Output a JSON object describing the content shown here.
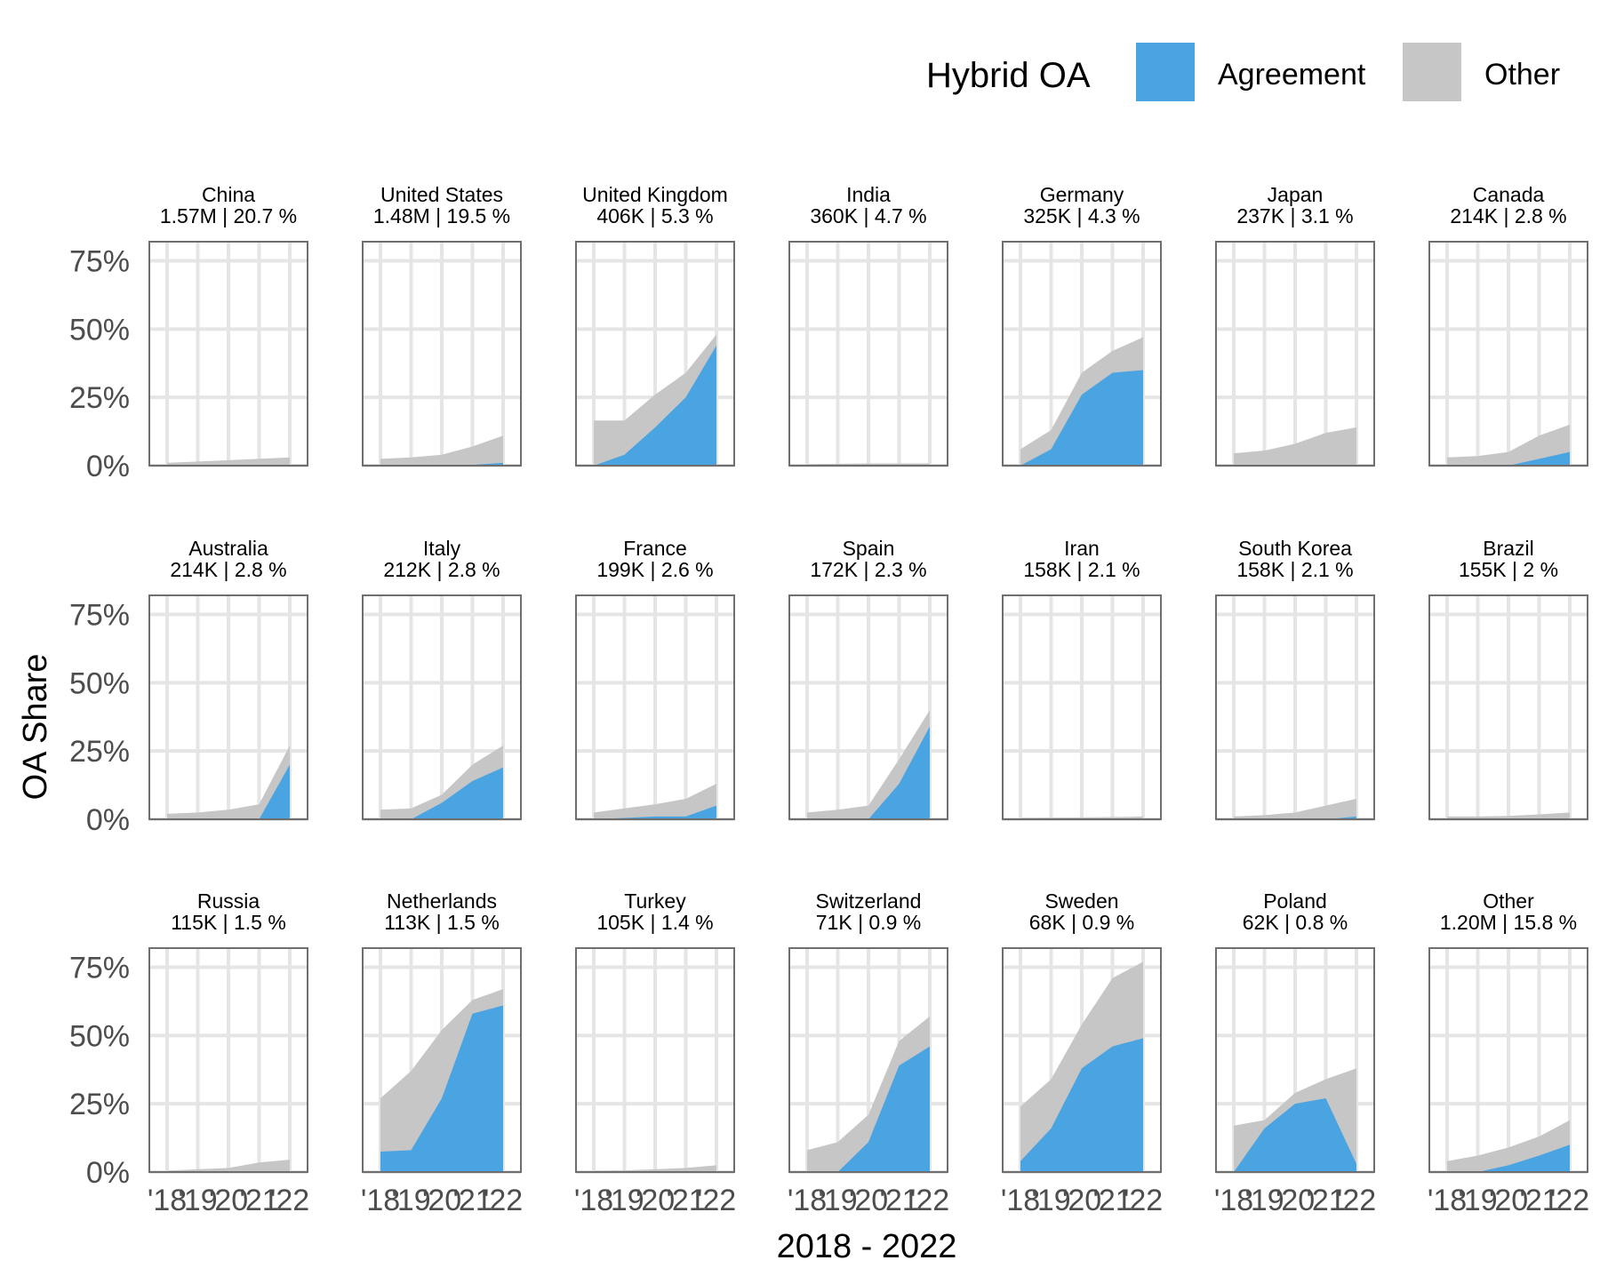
{
  "legend": {
    "title": "Hybrid OA",
    "items": [
      {
        "label": "Agreement",
        "color": "#4BA4E2"
      },
      {
        "label": "Other",
        "color": "#C6C6C6"
      }
    ]
  },
  "chart_data": {
    "type": "area",
    "xlabel": "2018 - 2022",
    "ylabel": "OA Share",
    "x": [
      2018,
      2019,
      2020,
      2021,
      2022
    ],
    "x_tick_labels": [
      "'18",
      "'19",
      "'20",
      "'21",
      "'22"
    ],
    "ylim": [
      0,
      0.82
    ],
    "y_ticks": [
      0,
      0.25,
      0.5,
      0.75
    ],
    "y_tick_labels": [
      "0%",
      "25%",
      "50%",
      "75%"
    ],
    "grid": true,
    "legend_position": "top-right",
    "series_names": [
      "Agreement",
      "Other"
    ],
    "panels": [
      {
        "name": "China",
        "subtitle": "1.57M | 20.7 %",
        "agreement": [
          0,
          0,
          0,
          0,
          0
        ],
        "total": [
          0.01,
          0.015,
          0.02,
          0.025,
          0.03
        ]
      },
      {
        "name": "United States",
        "subtitle": "1.48M | 19.5 %",
        "agreement": [
          0,
          0,
          0,
          0.003,
          0.01
        ],
        "total": [
          0.025,
          0.03,
          0.04,
          0.07,
          0.11
        ]
      },
      {
        "name": "United Kingdom",
        "subtitle": "406K | 5.3 %",
        "agreement": [
          0,
          0.04,
          0.14,
          0.25,
          0.44
        ],
        "total": [
          0.165,
          0.165,
          0.26,
          0.34,
          0.48
        ]
      },
      {
        "name": "India",
        "subtitle": "360K | 4.7 %",
        "agreement": [
          0,
          0,
          0,
          0,
          0
        ],
        "total": [
          0.005,
          0.007,
          0.008,
          0.008,
          0.008
        ]
      },
      {
        "name": "Germany",
        "subtitle": "325K | 4.3 %",
        "agreement": [
          0,
          0.06,
          0.26,
          0.34,
          0.35
        ],
        "total": [
          0.06,
          0.13,
          0.34,
          0.42,
          0.47
        ]
      },
      {
        "name": "Japan",
        "subtitle": "237K | 3.1 %",
        "agreement": [
          0,
          0,
          0,
          0,
          0
        ],
        "total": [
          0.045,
          0.055,
          0.08,
          0.12,
          0.14
        ]
      },
      {
        "name": "Canada",
        "subtitle": "214K | 2.8 %",
        "agreement": [
          0,
          0,
          0,
          0.025,
          0.05
        ],
        "total": [
          0.03,
          0.035,
          0.05,
          0.11,
          0.15
        ]
      },
      {
        "name": "Australia",
        "subtitle": "214K | 2.8 %",
        "agreement": [
          0,
          0,
          0,
          0,
          0.2
        ],
        "total": [
          0.02,
          0.025,
          0.035,
          0.055,
          0.27
        ]
      },
      {
        "name": "Italy",
        "subtitle": "212K | 2.8 %",
        "agreement": [
          0,
          0,
          0.06,
          0.14,
          0.19
        ],
        "total": [
          0.035,
          0.04,
          0.09,
          0.2,
          0.27
        ]
      },
      {
        "name": "France",
        "subtitle": "199K | 2.6 %",
        "agreement": [
          0,
          0.005,
          0.01,
          0.01,
          0.05
        ],
        "total": [
          0.025,
          0.04,
          0.055,
          0.075,
          0.13
        ]
      },
      {
        "name": "Spain",
        "subtitle": "172K | 2.3 %",
        "agreement": [
          0,
          0,
          0,
          0.13,
          0.34
        ],
        "total": [
          0.025,
          0.035,
          0.05,
          0.22,
          0.4
        ]
      },
      {
        "name": "Iran",
        "subtitle": "158K | 2.1 %",
        "agreement": [
          0,
          0,
          0,
          0,
          0
        ],
        "total": [
          0.005,
          0.006,
          0.007,
          0.008,
          0.01
        ]
      },
      {
        "name": "South Korea",
        "subtitle": "158K | 2.1 %",
        "agreement": [
          0,
          0,
          0,
          0,
          0.01
        ],
        "total": [
          0.01,
          0.015,
          0.025,
          0.05,
          0.075
        ]
      },
      {
        "name": "Brazil",
        "subtitle": "155K | 2 %",
        "agreement": [
          0,
          0,
          0,
          0,
          0
        ],
        "total": [
          0.01,
          0.01,
          0.012,
          0.018,
          0.025
        ]
      },
      {
        "name": "Russia",
        "subtitle": "115K | 1.5 %",
        "agreement": [
          0,
          0,
          0,
          0,
          0
        ],
        "total": [
          0.005,
          0.01,
          0.015,
          0.035,
          0.045
        ]
      },
      {
        "name": "Netherlands",
        "subtitle": "113K | 1.5 %",
        "agreement": [
          0.075,
          0.08,
          0.27,
          0.58,
          0.61
        ],
        "total": [
          0.27,
          0.37,
          0.52,
          0.63,
          0.67
        ]
      },
      {
        "name": "Turkey",
        "subtitle": "105K | 1.4 %",
        "agreement": [
          0,
          0,
          0,
          0,
          0
        ],
        "total": [
          0.004,
          0.006,
          0.01,
          0.015,
          0.025
        ]
      },
      {
        "name": "Switzerland",
        "subtitle": "71K | 0.9 %",
        "agreement": [
          0,
          0,
          0.11,
          0.39,
          0.46
        ],
        "total": [
          0.08,
          0.11,
          0.21,
          0.48,
          0.57
        ]
      },
      {
        "name": "Sweden",
        "subtitle": "68K | 0.9 %",
        "agreement": [
          0.04,
          0.16,
          0.38,
          0.46,
          0.49
        ],
        "total": [
          0.24,
          0.34,
          0.54,
          0.71,
          0.77
        ]
      },
      {
        "name": "Poland",
        "subtitle": "62K | 0.8 %",
        "agreement": [
          0,
          0.16,
          0.25,
          0.27,
          0.03
        ],
        "total": [
          0.17,
          0.19,
          0.29,
          0.34,
          0.38
        ]
      },
      {
        "name": "Other",
        "subtitle": "1.20M | 15.8 %",
        "agreement": [
          0,
          0,
          0.025,
          0.06,
          0.1
        ],
        "total": [
          0.04,
          0.06,
          0.09,
          0.13,
          0.19
        ]
      }
    ]
  }
}
